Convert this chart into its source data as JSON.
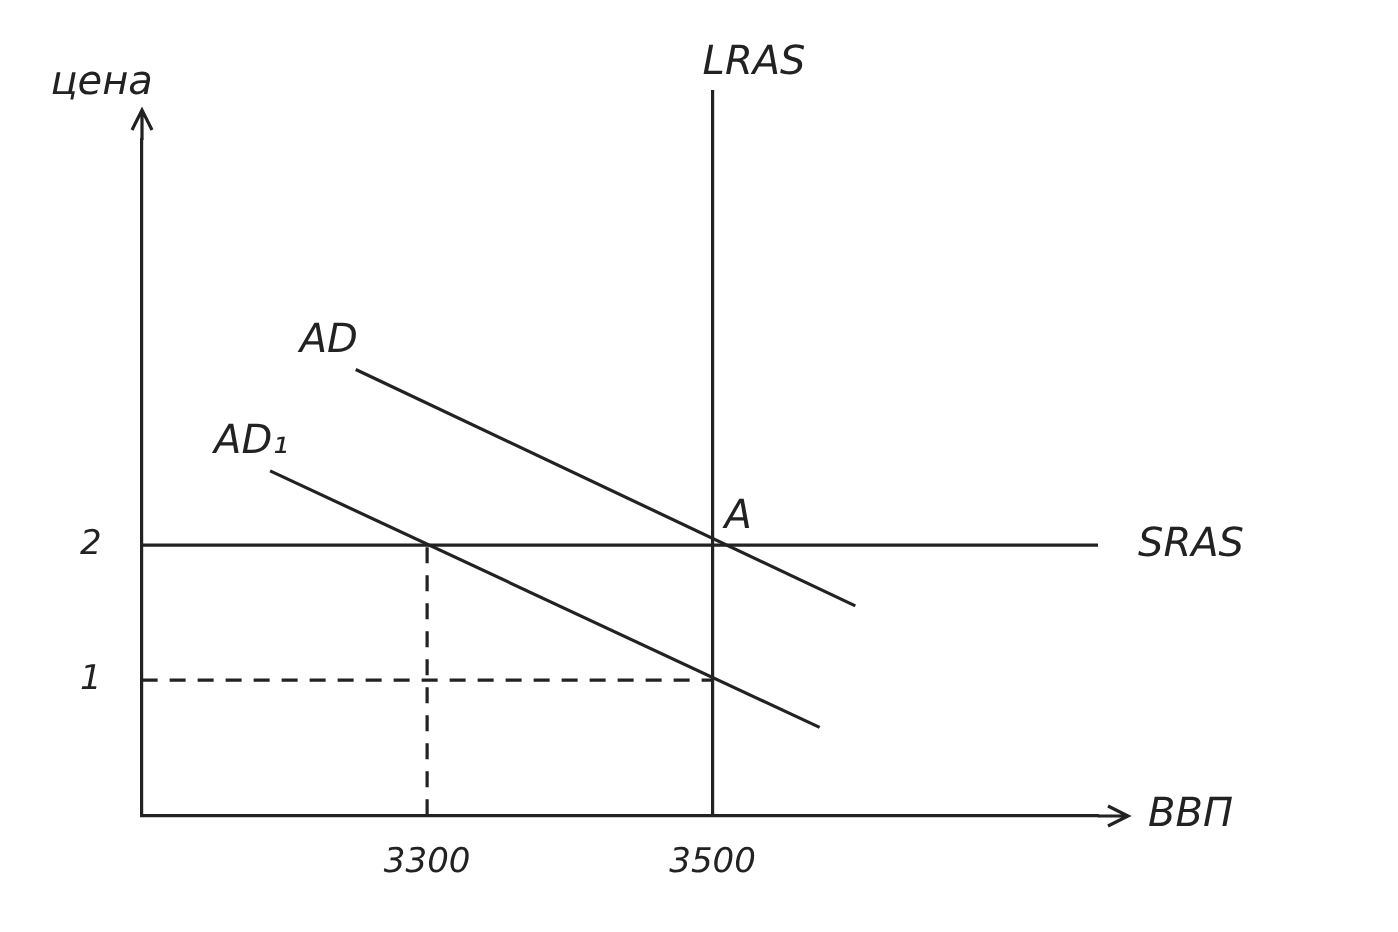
{
  "chart_data": {
    "type": "line",
    "xlabel": "ВВП",
    "ylabel": "цена",
    "xlim": [
      3100,
      3770
    ],
    "ylim": [
      0,
      5
    ],
    "xticks": [
      3300,
      3500
    ],
    "yticks": [
      1,
      2
    ],
    "grid": false,
    "legend": false,
    "series": [
      {
        "name": "AD",
        "color": "#222222",
        "x": [
          3250,
          3600
        ],
        "values": [
          3.3,
          1.55
        ]
      },
      {
        "name": "AD₁",
        "color": "#222222",
        "x": [
          3190,
          3575
        ],
        "values": [
          2.55,
          0.65
        ]
      },
      {
        "color": "#222222",
        "line_style": "dashed",
        "x": [
          3100,
          3500
        ],
        "values": [
          1,
          1
        ]
      },
      {
        "color": "#222222",
        "line_style": "dashed",
        "x": [
          3300,
          3300
        ],
        "values": [
          0,
          2
        ]
      }
    ],
    "ref_lines": [
      {
        "axis": "x",
        "value": 3500,
        "label": "LRAS",
        "color": "#222222"
      },
      {
        "axis": "y",
        "value": 2,
        "label": "SRAS",
        "color": "#222222"
      }
    ],
    "annotations": [
      {
        "text": "A",
        "x": 3500,
        "y": 2
      }
    ]
  }
}
